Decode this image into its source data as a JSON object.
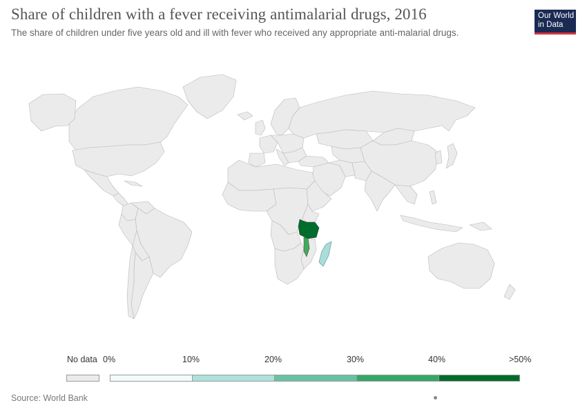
{
  "header": {
    "title": "Share of children with a fever receiving antimalarial drugs, 2016",
    "subtitle": "The share of children under five years old and ill with fever who received any appropriate anti-malarial drugs."
  },
  "logo": {
    "line1": "Our World",
    "line2": "in Data"
  },
  "map_data": {
    "type": "choropleth",
    "year": 2016,
    "countries_with_data": [
      {
        "name": "Tanzania",
        "bin": ">50%",
        "color": "#006d2c"
      },
      {
        "name": "Malawi",
        "bin": "30-40%",
        "color": "#41ab5d"
      },
      {
        "name": "Madagascar",
        "bin": "10-20%",
        "color": "#a8dddb"
      }
    ],
    "no_data_color": "#ebebeb"
  },
  "legend": {
    "no_data_label": "No data",
    "bins": [
      {
        "label": "0%",
        "color": "#f3fafb"
      },
      {
        "label": "10%",
        "color": "#ace1dc"
      },
      {
        "label": "20%",
        "color": "#66c2a4"
      },
      {
        "label": "30%",
        "color": "#34a867"
      },
      {
        "label": "40%",
        "color": "#006d2c"
      }
    ],
    "end_label": ">50%"
  },
  "footer": {
    "source": "Source: World Bank"
  }
}
